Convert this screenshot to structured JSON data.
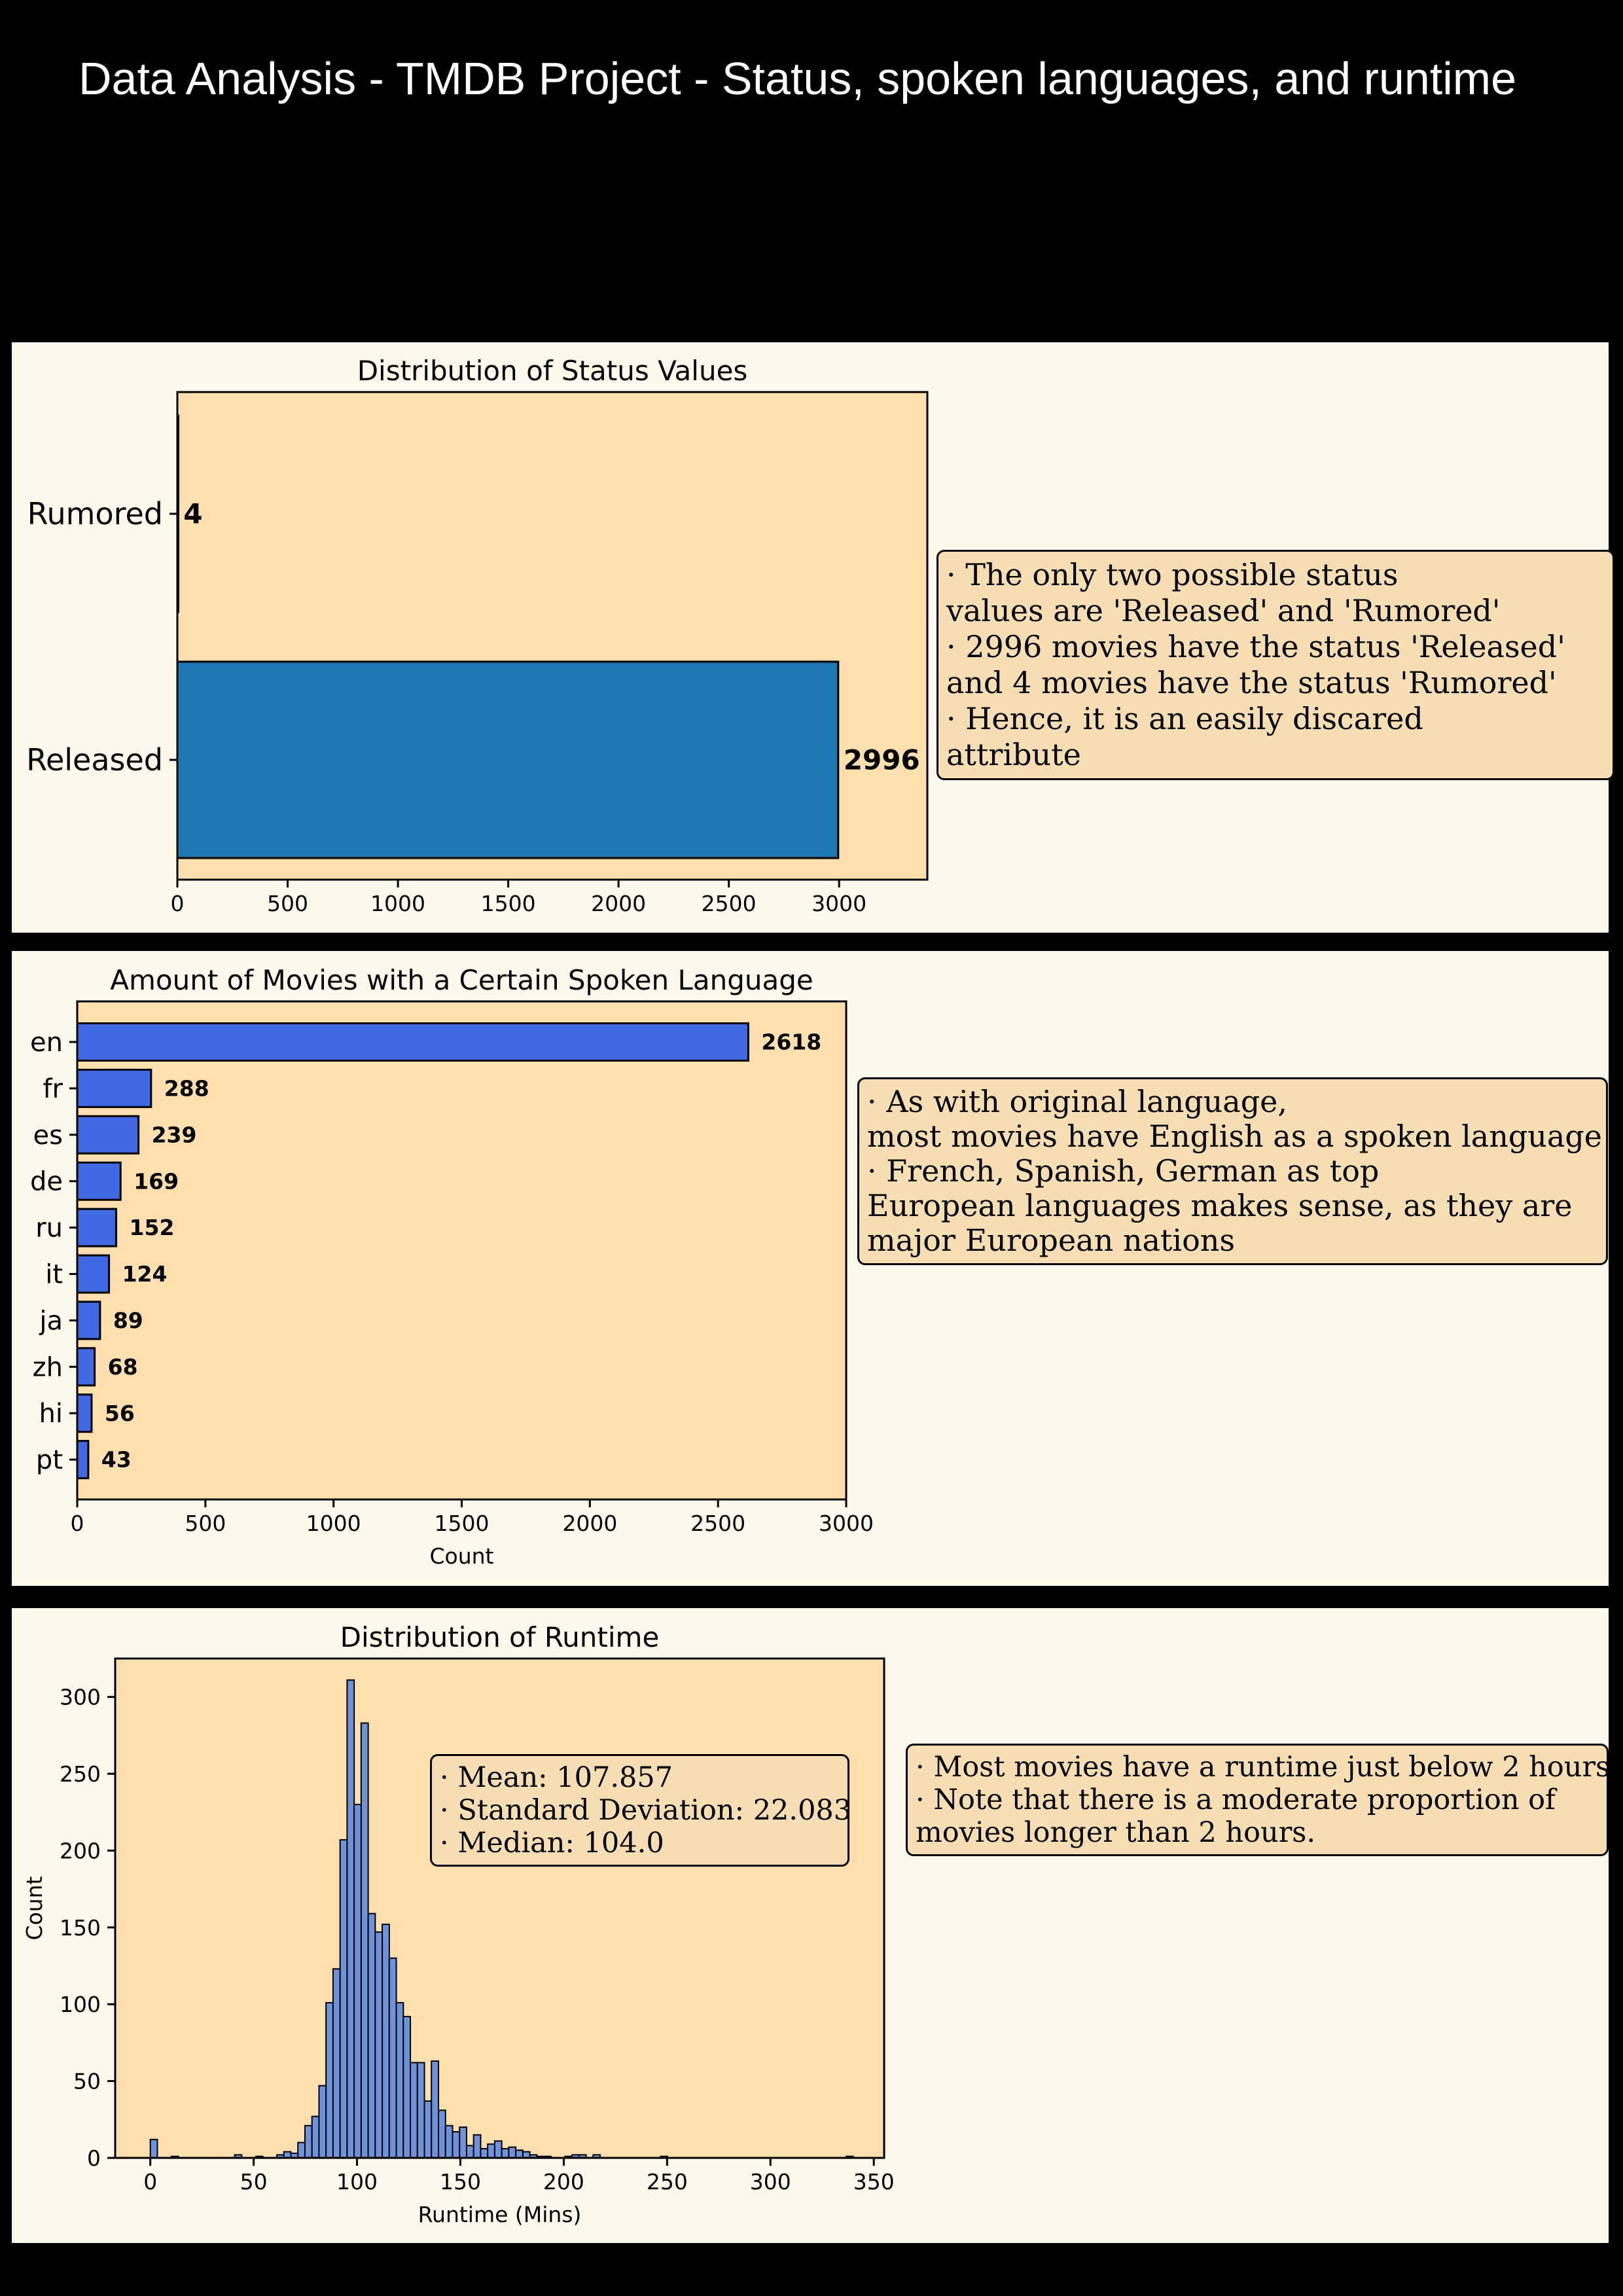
{
  "page_title": "Data Analysis - TMDB Project - Status, spoken languages, and runtime",
  "colors": {
    "page_bg": "#000000",
    "panel_bg": "#fdf8ec",
    "plot_bg": "#ffdfb0",
    "note_bg": "#f6ddb3",
    "status_bar": "#1f77b4",
    "language_bar": "#4169e1",
    "runtime_bar": "#6f93db"
  },
  "status_panel": {
    "note_lines": [
      "· The only two possible status",
      "values are 'Released' and 'Rumored'",
      "· 2996 movies have the status 'Released'",
      "and 4 movies have the status 'Rumored'",
      "· Hence, it is an easily discared",
      "attribute"
    ]
  },
  "language_panel": {
    "note_lines": [
      "· As with original language,",
      "most movies have English as a spoken language",
      "· French, Spanish, German as top",
      "European languages makes sense, as they are",
      "major European nations"
    ]
  },
  "runtime_panel": {
    "stats_lines": [
      "· Mean: 107.857",
      "· Standard Deviation: 22.083",
      "· Median: 104.0"
    ],
    "note_lines": [
      "· Most movies have a runtime just below 2 hours",
      "· Note that there is a moderate proportion of",
      "movies longer than 2 hours."
    ]
  },
  "chart_data": [
    {
      "type": "bar",
      "orientation": "horizontal",
      "title": "Distribution of Status Values",
      "xlabel": "",
      "ylabel": "",
      "categories": [
        "Rumored",
        "Released"
      ],
      "values": [
        4,
        2996
      ],
      "data_labels": [
        "4",
        "2996"
      ],
      "xlim": [
        0,
        3400
      ],
      "xticks": [
        0,
        500,
        1000,
        1500,
        2000,
        2500,
        3000
      ],
      "grid": false
    },
    {
      "type": "bar",
      "orientation": "horizontal",
      "title": "Amount of Movies with a Certain Spoken Language",
      "xlabel": "Count",
      "ylabel": "",
      "categories": [
        "en",
        "fr",
        "es",
        "de",
        "ru",
        "it",
        "ja",
        "zh",
        "hi",
        "pt"
      ],
      "values": [
        2618,
        288,
        239,
        169,
        152,
        124,
        89,
        68,
        56,
        43
      ],
      "data_labels": [
        "2618",
        "288",
        "239",
        "169",
        "152",
        "124",
        "89",
        "68",
        "56",
        "43"
      ],
      "xlim": [
        0,
        3000
      ],
      "xticks": [
        0,
        500,
        1000,
        1500,
        2000,
        2500,
        3000
      ],
      "grid": false
    },
    {
      "type": "bar",
      "subtype": "histogram",
      "title": "Distribution of Runtime",
      "xlabel": "Runtime (Mins)",
      "ylabel": "Count",
      "bin_width": 3.4,
      "bin_starts": [
        0,
        10.2,
        40.8,
        51,
        61.2,
        64.6,
        68,
        71.4,
        74.8,
        78.2,
        81.6,
        85,
        88.4,
        91.8,
        95.2,
        98.6,
        102,
        105.4,
        108.8,
        112.2,
        115.6,
        119,
        122.4,
        125.8,
        129.2,
        132.6,
        136,
        139.4,
        142.8,
        146.2,
        149.6,
        153,
        156.4,
        159.8,
        163.2,
        166.6,
        170,
        173.4,
        176.8,
        180.2,
        183.6,
        187,
        190.4,
        200.6,
        204,
        207.4,
        214.2,
        246.8,
        336.6
      ],
      "values": [
        12,
        1,
        2,
        1,
        2,
        4,
        3,
        10,
        21,
        27,
        47,
        101,
        123,
        207,
        311,
        230,
        283,
        159,
        147,
        152,
        130,
        101,
        92,
        62,
        62,
        37,
        63,
        31,
        21,
        17,
        20,
        8,
        15,
        6,
        9,
        11,
        6,
        7,
        5,
        4,
        2,
        1,
        1,
        1,
        2,
        2,
        2,
        1,
        1
      ],
      "xlim": [
        -17,
        355
      ],
      "ylim": [
        0,
        325
      ],
      "xticks": [
        0,
        50,
        100,
        150,
        200,
        250,
        300,
        350
      ],
      "yticks": [
        0,
        50,
        100,
        150,
        200,
        250,
        300
      ],
      "grid": false
    }
  ]
}
